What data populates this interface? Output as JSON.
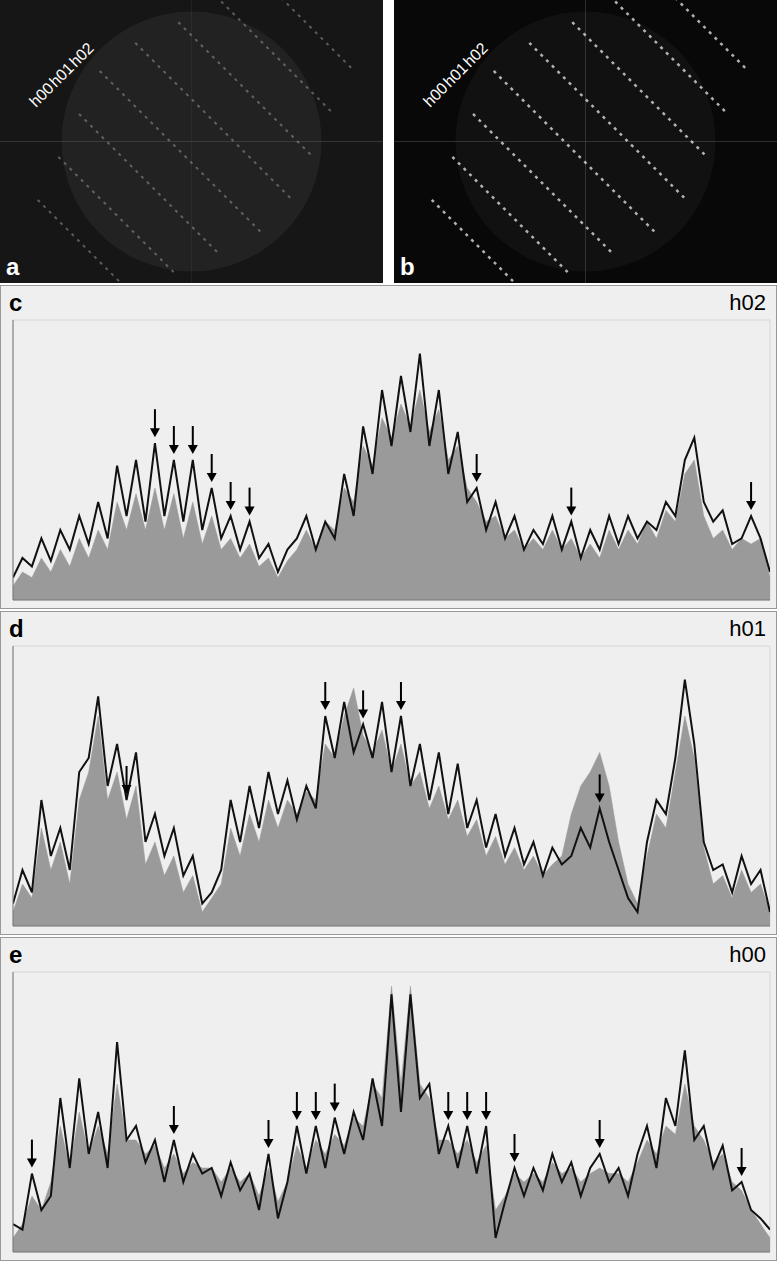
{
  "images": [
    {
      "label": "a",
      "labels": [
        "h02",
        "h01",
        "h00"
      ]
    },
    {
      "label": "b",
      "labels": [
        "h02",
        "h01",
        "h00"
      ]
    }
  ],
  "chart_data": [
    {
      "type": "line",
      "panel": "c",
      "title": "h02",
      "x": [
        0,
        1,
        2,
        3,
        4,
        5,
        6,
        7,
        8,
        9,
        10,
        11,
        12,
        13,
        14,
        15,
        16,
        17,
        18,
        19,
        20,
        21,
        22,
        23,
        24,
        25,
        26,
        27,
        28,
        29,
        30,
        31,
        32,
        33,
        34,
        35,
        36,
        37,
        38,
        39,
        40,
        41,
        42,
        43,
        44,
        45,
        46,
        47,
        48,
        49,
        50,
        51,
        52,
        53,
        54,
        55,
        56,
        57,
        58,
        59,
        60,
        61,
        62,
        63,
        64,
        65,
        66,
        67,
        68,
        69,
        70,
        71,
        72,
        73,
        74,
        75,
        76,
        77,
        78,
        79,
        80
      ],
      "xlim": [
        0,
        80
      ],
      "xticks": [
        0,
        10,
        20,
        30,
        40,
        50,
        60,
        70,
        80
      ],
      "ylim": [
        0,
        100
      ],
      "yticks": [
        0,
        20,
        40,
        60,
        80,
        100
      ],
      "grid": true,
      "tick_labels": false,
      "series": [
        {
          "type": "area",
          "color": "#9a9a9a",
          "values": [
            5,
            10,
            8,
            15,
            10,
            18,
            12,
            22,
            15,
            25,
            18,
            35,
            25,
            38,
            25,
            40,
            25,
            38,
            22,
            35,
            20,
            30,
            18,
            22,
            15,
            20,
            12,
            15,
            8,
            14,
            18,
            25,
            18,
            28,
            25,
            40,
            35,
            55,
            48,
            65,
            58,
            70,
            62,
            75,
            60,
            68,
            50,
            55,
            40,
            35,
            28,
            30,
            22,
            25,
            18,
            22,
            18,
            25,
            18,
            22,
            15,
            20,
            15,
            25,
            18,
            25,
            20,
            28,
            22,
            32,
            28,
            45,
            50,
            30,
            22,
            25,
            18,
            22,
            20,
            22,
            8
          ]
        },
        {
          "type": "line",
          "color": "#111111",
          "values": [
            8,
            15,
            12,
            22,
            14,
            25,
            18,
            30,
            20,
            35,
            22,
            48,
            30,
            50,
            28,
            56,
            30,
            50,
            28,
            50,
            25,
            40,
            22,
            30,
            18,
            28,
            15,
            20,
            10,
            18,
            22,
            30,
            18,
            28,
            22,
            45,
            30,
            62,
            45,
            75,
            55,
            80,
            60,
            88,
            55,
            75,
            45,
            60,
            35,
            40,
            25,
            35,
            22,
            30,
            18,
            25,
            20,
            30,
            18,
            28,
            15,
            25,
            18,
            30,
            20,
            30,
            22,
            28,
            25,
            35,
            30,
            50,
            58,
            35,
            28,
            32,
            20,
            22,
            30,
            22,
            10
          ]
        }
      ],
      "arrows": [
        15,
        17,
        19,
        21,
        23,
        25,
        49,
        59,
        78
      ]
    },
    {
      "type": "line",
      "panel": "d",
      "title": "h01",
      "x": [
        0,
        1,
        2,
        3,
        4,
        5,
        6,
        7,
        8,
        9,
        10,
        11,
        12,
        13,
        14,
        15,
        16,
        17,
        18,
        19,
        20,
        21,
        22,
        23,
        24,
        25,
        26,
        27,
        28,
        29,
        30,
        31,
        32,
        33,
        34,
        35,
        36,
        37,
        38,
        39,
        40,
        41,
        42,
        43,
        44,
        45,
        46,
        47,
        48,
        49,
        50,
        51,
        52,
        53,
        54,
        55,
        56,
        57,
        58,
        59,
        60,
        61,
        62,
        63,
        64,
        65,
        66,
        67,
        68,
        69,
        70,
        71,
        72,
        73,
        74,
        75,
        76,
        77,
        78,
        79,
        80
      ],
      "xlim": [
        0,
        80
      ],
      "xticks": [
        0,
        10,
        20,
        30,
        40,
        50,
        60,
        70,
        80
      ],
      "ylim": [
        0,
        100
      ],
      "yticks": [
        0,
        20,
        40,
        60,
        80,
        100
      ],
      "grid": true,
      "tick_labels": false,
      "series": [
        {
          "type": "area",
          "color": "#9a9a9a",
          "values": [
            5,
            15,
            10,
            35,
            20,
            30,
            15,
            45,
            55,
            75,
            45,
            55,
            38,
            50,
            22,
            30,
            18,
            25,
            12,
            18,
            5,
            10,
            15,
            35,
            25,
            40,
            30,
            45,
            35,
            45,
            40,
            48,
            45,
            65,
            60,
            75,
            85,
            68,
            62,
            70,
            55,
            65,
            50,
            55,
            42,
            50,
            38,
            45,
            32,
            38,
            25,
            32,
            22,
            28,
            20,
            25,
            18,
            22,
            25,
            40,
            50,
            55,
            62,
            50,
            30,
            15,
            8,
            25,
            40,
            35,
            55,
            75,
            60,
            28,
            15,
            18,
            10,
            20,
            12,
            15,
            5
          ]
        },
        {
          "type": "line",
          "color": "#111111",
          "values": [
            8,
            20,
            12,
            45,
            25,
            35,
            20,
            55,
            60,
            82,
            50,
            65,
            45,
            62,
            30,
            40,
            25,
            35,
            18,
            25,
            8,
            12,
            20,
            45,
            30,
            50,
            35,
            55,
            40,
            52,
            38,
            50,
            42,
            75,
            60,
            80,
            62,
            72,
            60,
            80,
            55,
            75,
            50,
            65,
            45,
            62,
            40,
            58,
            35,
            45,
            28,
            40,
            25,
            35,
            22,
            30,
            18,
            28,
            22,
            25,
            35,
            28,
            42,
            30,
            20,
            10,
            5,
            30,
            45,
            40,
            60,
            88,
            65,
            30,
            20,
            22,
            12,
            25,
            15,
            20,
            5
          ]
        }
      ],
      "arrows": [
        12,
        33,
        37,
        41,
        62
      ]
    },
    {
      "type": "line",
      "panel": "e",
      "title": "h00",
      "x": [
        0,
        1,
        2,
        3,
        4,
        5,
        6,
        7,
        8,
        9,
        10,
        11,
        12,
        13,
        14,
        15,
        16,
        17,
        18,
        19,
        20,
        21,
        22,
        23,
        24,
        25,
        26,
        27,
        28,
        29,
        30,
        31,
        32,
        33,
        34,
        35,
        36,
        37,
        38,
        39,
        40,
        41,
        42,
        43,
        44,
        45,
        46,
        47,
        48,
        49,
        50,
        51,
        52,
        53,
        54,
        55,
        56,
        57,
        58,
        59,
        60,
        61,
        62,
        63,
        64,
        65,
        66,
        67,
        68,
        69,
        70,
        71,
        72,
        73,
        74,
        75,
        76,
        77,
        78,
        79,
        80
      ],
      "xlim": [
        0,
        80
      ],
      "xticks": [
        0,
        10,
        20,
        30,
        40,
        50,
        60,
        70,
        80
      ],
      "ylim": [
        0,
        100
      ],
      "yticks": [
        0,
        20,
        40,
        60,
        80,
        100
      ],
      "grid": true,
      "tick_labels": false,
      "series": [
        {
          "type": "area",
          "color": "#9a9a9a",
          "values": [
            5,
            10,
            20,
            15,
            25,
            45,
            30,
            50,
            35,
            45,
            35,
            60,
            40,
            40,
            35,
            38,
            30,
            35,
            28,
            32,
            30,
            30,
            25,
            30,
            25,
            28,
            20,
            30,
            18,
            25,
            38,
            30,
            40,
            35,
            42,
            38,
            48,
            45,
            60,
            55,
            95,
            60,
            95,
            60,
            55,
            40,
            40,
            35,
            40,
            32,
            38,
            15,
            20,
            28,
            25,
            28,
            25,
            32,
            28,
            30,
            25,
            28,
            30,
            28,
            28,
            25,
            32,
            40,
            35,
            45,
            42,
            60,
            45,
            40,
            32,
            35,
            25,
            22,
            15,
            10,
            5
          ]
        },
        {
          "type": "line",
          "color": "#111111",
          "values": [
            10,
            8,
            28,
            15,
            20,
            55,
            30,
            62,
            35,
            50,
            30,
            75,
            40,
            45,
            32,
            40,
            25,
            40,
            25,
            35,
            28,
            30,
            20,
            32,
            22,
            28,
            15,
            35,
            12,
            25,
            45,
            28,
            45,
            30,
            48,
            35,
            50,
            40,
            62,
            45,
            92,
            50,
            92,
            55,
            60,
            35,
            45,
            30,
            45,
            28,
            45,
            5,
            18,
            30,
            20,
            30,
            22,
            35,
            25,
            32,
            20,
            30,
            35,
            25,
            30,
            20,
            35,
            45,
            30,
            55,
            45,
            72,
            40,
            45,
            30,
            38,
            22,
            25,
            15,
            12,
            8
          ]
        }
      ],
      "arrows": [
        2,
        17,
        27,
        30,
        32,
        34,
        46,
        48,
        50,
        53,
        62,
        77
      ]
    }
  ]
}
